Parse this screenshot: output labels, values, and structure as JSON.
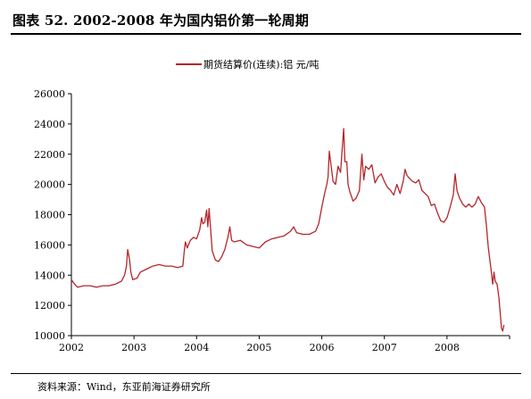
{
  "header": {
    "figure_title": "图表 52. 2002-2008 年为国内铝价第一轮周期"
  },
  "footer": {
    "source": "资料来源：Wind，东亚前海证券研究所"
  },
  "colors": {
    "series": "#b5252b",
    "axis": "#000000"
  },
  "chart_data": {
    "type": "line",
    "title": "",
    "xlabel": "",
    "ylabel": "",
    "xlim": [
      2002.0,
      2009.0
    ],
    "ylim": [
      10000,
      26000
    ],
    "x_ticks": [
      "2002",
      "2003",
      "2004",
      "2005",
      "2006",
      "2007",
      "2008"
    ],
    "x_tick_values": [
      2002,
      2003,
      2004,
      2005,
      2006,
      2007,
      2008
    ],
    "y_ticks": [
      10000,
      12000,
      14000,
      16000,
      18000,
      20000,
      22000,
      24000,
      26000
    ],
    "y_tick_labels": [
      "10000",
      "12000",
      "14000",
      "16000",
      "18000",
      "20000",
      "22000",
      "24000",
      "26000"
    ],
    "legend": {
      "position": "top-center",
      "entries": [
        "期货结算价(连续):铝 元/吨"
      ]
    },
    "grid": false,
    "series": [
      {
        "name": "期货结算价(连续):铝 元/吨",
        "points": [
          [
            2002.0,
            13700
          ],
          [
            2002.05,
            13400
          ],
          [
            2002.1,
            13200
          ],
          [
            2002.2,
            13300
          ],
          [
            2002.3,
            13300
          ],
          [
            2002.4,
            13200
          ],
          [
            2002.5,
            13300
          ],
          [
            2002.6,
            13300
          ],
          [
            2002.7,
            13400
          ],
          [
            2002.8,
            13600
          ],
          [
            2002.85,
            14000
          ],
          [
            2002.88,
            14600
          ],
          [
            2002.9,
            15700
          ],
          [
            2002.93,
            15000
          ],
          [
            2002.95,
            14200
          ],
          [
            2002.98,
            13700
          ],
          [
            2003.05,
            13800
          ],
          [
            2003.1,
            14200
          ],
          [
            2003.2,
            14400
          ],
          [
            2003.3,
            14600
          ],
          [
            2003.4,
            14700
          ],
          [
            2003.5,
            14600
          ],
          [
            2003.6,
            14600
          ],
          [
            2003.7,
            14500
          ],
          [
            2003.78,
            14600
          ],
          [
            2003.8,
            15500
          ],
          [
            2003.82,
            16200
          ],
          [
            2003.85,
            15800
          ],
          [
            2003.9,
            16300
          ],
          [
            2003.95,
            16500
          ],
          [
            2004.0,
            16400
          ],
          [
            2004.05,
            17000
          ],
          [
            2004.08,
            17800
          ],
          [
            2004.1,
            17400
          ],
          [
            2004.13,
            17500
          ],
          [
            2004.16,
            18300
          ],
          [
            2004.18,
            17200
          ],
          [
            2004.2,
            18400
          ],
          [
            2004.22,
            17300
          ],
          [
            2004.25,
            15600
          ],
          [
            2004.3,
            15000
          ],
          [
            2004.35,
            14900
          ],
          [
            2004.4,
            15200
          ],
          [
            2004.45,
            15700
          ],
          [
            2004.5,
            16500
          ],
          [
            2004.53,
            17200
          ],
          [
            2004.56,
            16300
          ],
          [
            2004.6,
            16200
          ],
          [
            2004.7,
            16300
          ],
          [
            2004.8,
            16000
          ],
          [
            2004.9,
            15900
          ],
          [
            2005.0,
            15800
          ],
          [
            2005.05,
            16000
          ],
          [
            2005.1,
            16200
          ],
          [
            2005.2,
            16400
          ],
          [
            2005.3,
            16500
          ],
          [
            2005.4,
            16600
          ],
          [
            2005.5,
            16900
          ],
          [
            2005.55,
            17200
          ],
          [
            2005.6,
            16800
          ],
          [
            2005.7,
            16700
          ],
          [
            2005.8,
            16700
          ],
          [
            2005.9,
            16900
          ],
          [
            2005.95,
            17400
          ],
          [
            2006.0,
            18500
          ],
          [
            2006.05,
            19500
          ],
          [
            2006.08,
            20000
          ],
          [
            2006.1,
            20500
          ],
          [
            2006.12,
            22200
          ],
          [
            2006.15,
            21200
          ],
          [
            2006.18,
            20200
          ],
          [
            2006.22,
            20000
          ],
          [
            2006.26,
            21200
          ],
          [
            2006.3,
            20800
          ],
          [
            2006.35,
            23700
          ],
          [
            2006.37,
            21500
          ],
          [
            2006.4,
            21500
          ],
          [
            2006.42,
            20000
          ],
          [
            2006.45,
            19500
          ],
          [
            2006.5,
            18900
          ],
          [
            2006.55,
            19100
          ],
          [
            2006.6,
            19600
          ],
          [
            2006.64,
            22000
          ],
          [
            2006.67,
            20300
          ],
          [
            2006.7,
            21200
          ],
          [
            2006.75,
            21000
          ],
          [
            2006.8,
            21300
          ],
          [
            2006.85,
            20100
          ],
          [
            2006.9,
            20500
          ],
          [
            2006.95,
            20700
          ],
          [
            2007.0,
            20200
          ],
          [
            2007.05,
            19800
          ],
          [
            2007.1,
            19600
          ],
          [
            2007.15,
            19300
          ],
          [
            2007.2,
            20000
          ],
          [
            2007.25,
            19400
          ],
          [
            2007.3,
            20200
          ],
          [
            2007.33,
            21000
          ],
          [
            2007.36,
            20600
          ],
          [
            2007.4,
            20400
          ],
          [
            2007.45,
            20200
          ],
          [
            2007.5,
            20100
          ],
          [
            2007.55,
            20300
          ],
          [
            2007.6,
            19600
          ],
          [
            2007.65,
            19400
          ],
          [
            2007.7,
            19200
          ],
          [
            2007.75,
            18600
          ],
          [
            2007.8,
            18700
          ],
          [
            2007.85,
            18100
          ],
          [
            2007.9,
            17600
          ],
          [
            2007.95,
            17500
          ],
          [
            2008.0,
            17800
          ],
          [
            2008.05,
            18500
          ],
          [
            2008.1,
            19300
          ],
          [
            2008.13,
            20700
          ],
          [
            2008.16,
            19600
          ],
          [
            2008.2,
            19100
          ],
          [
            2008.25,
            18700
          ],
          [
            2008.3,
            18500
          ],
          [
            2008.35,
            18700
          ],
          [
            2008.4,
            18500
          ],
          [
            2008.45,
            18700
          ],
          [
            2008.5,
            19200
          ],
          [
            2008.55,
            18800
          ],
          [
            2008.6,
            18500
          ],
          [
            2008.63,
            17300
          ],
          [
            2008.66,
            15800
          ],
          [
            2008.7,
            14500
          ],
          [
            2008.73,
            13400
          ],
          [
            2008.75,
            14200
          ],
          [
            2008.77,
            13600
          ],
          [
            2008.8,
            13400
          ],
          [
            2008.83,
            12500
          ],
          [
            2008.85,
            11500
          ],
          [
            2008.87,
            10500
          ],
          [
            2008.89,
            10300
          ],
          [
            2008.91,
            10700
          ]
        ]
      }
    ]
  }
}
